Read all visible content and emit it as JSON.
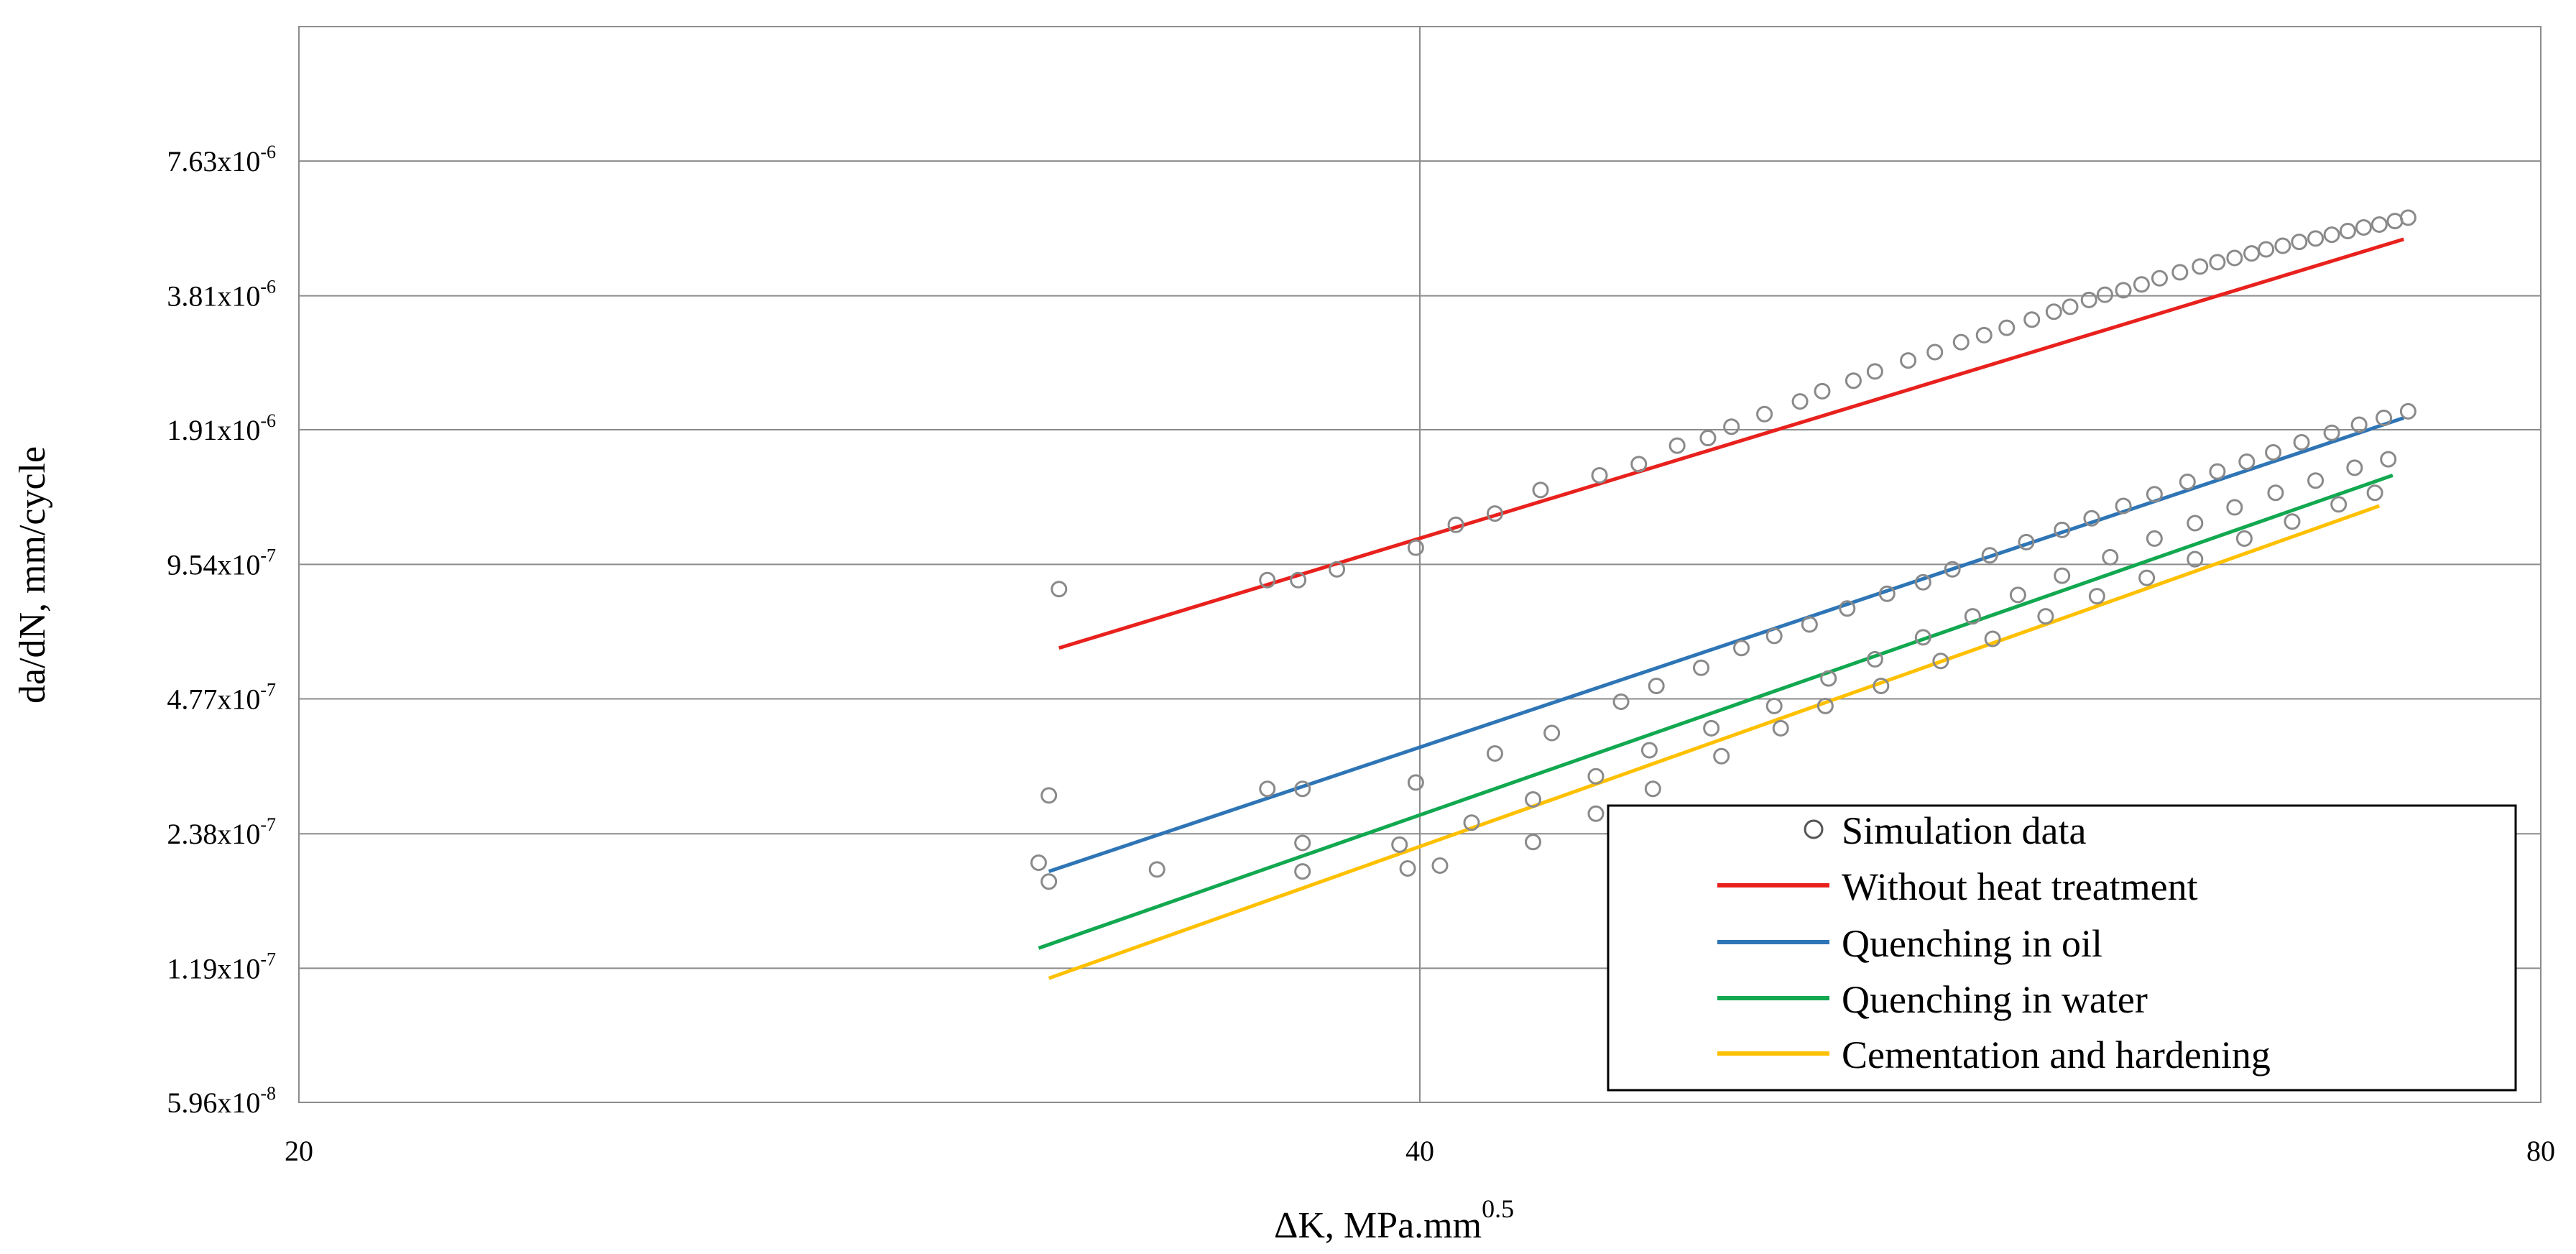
{
  "chart_data": {
    "type": "scatter",
    "xlabel": "ΔK, MPa.mm",
    "xlabel_sup": "0.5",
    "ylabel": "da/dN, mm/cycle",
    "x_scale": "log",
    "y_scale": "log",
    "xlim": [
      20,
      80
    ],
    "ylim": [
      5.96e-08,
      1.526e-05
    ],
    "x_ticks": [
      {
        "value": 20,
        "label": "20"
      },
      {
        "value": 40,
        "label": "40"
      },
      {
        "value": 80,
        "label": "80"
      }
    ],
    "y_ticks": [
      {
        "value": 5.96e-08,
        "base": "5.96x10",
        "exp": "-8"
      },
      {
        "value": 1.19e-07,
        "base": "1.19x10",
        "exp": "-7"
      },
      {
        "value": 2.38e-07,
        "base": "2.38x10",
        "exp": "-7"
      },
      {
        "value": 4.77e-07,
        "base": "4.77x10",
        "exp": "-7"
      },
      {
        "value": 9.54e-07,
        "base": "9.54x10",
        "exp": "-7"
      },
      {
        "value": 1.91e-06,
        "base": "1.91x10",
        "exp": "-6"
      },
      {
        "value": 3.81e-06,
        "base": "3.81x10",
        "exp": "-6"
      },
      {
        "value": 7.63e-06,
        "base": "7.63x10",
        "exp": "-6"
      }
    ],
    "grid": true,
    "legend_position": "bottom-right",
    "legend": [
      {
        "label": "Simulation data",
        "kind": "marker",
        "color": "#808080"
      },
      {
        "label": "Without heat treatment",
        "kind": "line",
        "color": "#e8211d"
      },
      {
        "label": "Quenching in oil",
        "kind": "line",
        "color": "#2e75b6"
      },
      {
        "label": "Quenching in water",
        "kind": "line",
        "color": "#12a850"
      },
      {
        "label": "Cementation and hardening",
        "kind": "line",
        "color": "#ffc000"
      }
    ],
    "fit_lines": [
      {
        "name": "Without heat treatment",
        "color": "#e8211d",
        "x": [
          32.0,
          73.5
        ],
        "y": [
          6.2e-07,
          5.1e-06
        ]
      },
      {
        "name": "Quenching in oil",
        "color": "#2e75b6",
        "x": [
          31.8,
          73.5
        ],
        "y": [
          1.96e-07,
          2.03e-06
        ]
      },
      {
        "name": "Quenching in water",
        "color": "#12a850",
        "x": [
          31.6,
          73.0
        ],
        "y": [
          1.32e-07,
          1.51e-06
        ]
      },
      {
        "name": "Cementation and hardening",
        "color": "#ffc000",
        "x": [
          31.8,
          72.4
        ],
        "y": [
          1.13e-07,
          1.29e-06
        ]
      }
    ],
    "series": [
      {
        "name": "Simulation data",
        "points": [
          [
            32.0,
            8.4e-07
          ],
          [
            31.8,
            2.9e-07
          ],
          [
            31.6,
            2.05e-07
          ],
          [
            31.8,
            1.86e-07
          ],
          [
            34.0,
            1.98e-07
          ],
          [
            36.4,
            8.8e-07
          ],
          [
            37.1,
            8.8e-07
          ],
          [
            38.0,
            9.3e-07
          ],
          [
            39.9,
            1.04e-06
          ],
          [
            40.9,
            1.17e-06
          ],
          [
            41.9,
            1.24e-06
          ],
          [
            43.1,
            1.4e-06
          ],
          [
            44.7,
            1.51e-06
          ],
          [
            45.8,
            1.6e-06
          ],
          [
            46.9,
            1.76e-06
          ],
          [
            47.8,
            1.83e-06
          ],
          [
            48.5,
            1.94e-06
          ],
          [
            49.5,
            2.07e-06
          ],
          [
            50.6,
            2.21e-06
          ],
          [
            51.3,
            2.33e-06
          ],
          [
            52.3,
            2.46e-06
          ],
          [
            53.0,
            2.58e-06
          ],
          [
            54.1,
            2.73e-06
          ],
          [
            55.0,
            2.85e-06
          ],
          [
            55.9,
            3e-06
          ],
          [
            56.7,
            3.11e-06
          ],
          [
            57.5,
            3.23e-06
          ],
          [
            58.4,
            3.37e-06
          ],
          [
            59.2,
            3.51e-06
          ],
          [
            59.8,
            3.6e-06
          ],
          [
            60.5,
            3.73e-06
          ],
          [
            61.1,
            3.83e-06
          ],
          [
            61.8,
            3.92e-06
          ],
          [
            62.5,
            4.04e-06
          ],
          [
            63.2,
            4.17e-06
          ],
          [
            64.0,
            4.3e-06
          ],
          [
            64.8,
            4.43e-06
          ],
          [
            65.5,
            4.53e-06
          ],
          [
            66.2,
            4.63e-06
          ],
          [
            66.9,
            4.74e-06
          ],
          [
            67.5,
            4.84e-06
          ],
          [
            68.2,
            4.93e-06
          ],
          [
            68.9,
            5.03e-06
          ],
          [
            69.6,
            5.12e-06
          ],
          [
            70.3,
            5.22e-06
          ],
          [
            71.0,
            5.32e-06
          ],
          [
            71.7,
            5.42e-06
          ],
          [
            72.4,
            5.5e-06
          ],
          [
            73.1,
            5.6e-06
          ],
          [
            73.7,
            5.7e-06
          ],
          [
            36.4,
            3e-07
          ],
          [
            37.2,
            3e-07
          ],
          [
            39.9,
            3.1e-07
          ],
          [
            41.9,
            3.6e-07
          ],
          [
            43.4,
            4e-07
          ],
          [
            45.3,
            4.7e-07
          ],
          [
            46.3,
            5.1e-07
          ],
          [
            47.6,
            5.6e-07
          ],
          [
            48.8,
            6.2e-07
          ],
          [
            49.8,
            6.6e-07
          ],
          [
            50.9,
            7e-07
          ],
          [
            52.1,
            7.6e-07
          ],
          [
            53.4,
            8.2e-07
          ],
          [
            54.6,
            8.7e-07
          ],
          [
            55.6,
            9.3e-07
          ],
          [
            56.9,
            1e-06
          ],
          [
            58.2,
            1.07e-06
          ],
          [
            59.5,
            1.14e-06
          ],
          [
            60.6,
            1.21e-06
          ],
          [
            61.8,
            1.29e-06
          ],
          [
            63.0,
            1.37e-06
          ],
          [
            64.3,
            1.46e-06
          ],
          [
            65.5,
            1.54e-06
          ],
          [
            66.7,
            1.62e-06
          ],
          [
            67.8,
            1.7e-06
          ],
          [
            69.0,
            1.79e-06
          ],
          [
            70.3,
            1.88e-06
          ],
          [
            71.5,
            1.96e-06
          ],
          [
            72.6,
            2.03e-06
          ],
          [
            73.7,
            2.1e-06
          ],
          [
            37.2,
            2.27e-07
          ],
          [
            39.5,
            2.25e-07
          ],
          [
            41.3,
            2.52e-07
          ],
          [
            42.9,
            2.84e-07
          ],
          [
            44.6,
            3.2e-07
          ],
          [
            46.1,
            3.66e-07
          ],
          [
            47.9,
            4.1e-07
          ],
          [
            49.8,
            4.6e-07
          ],
          [
            51.5,
            5.3e-07
          ],
          [
            53.0,
            5.85e-07
          ],
          [
            54.6,
            6.55e-07
          ],
          [
            56.3,
            7.3e-07
          ],
          [
            57.9,
            8.15e-07
          ],
          [
            59.5,
            9e-07
          ],
          [
            61.3,
            9.9e-07
          ],
          [
            63.0,
            1.09e-06
          ],
          [
            64.6,
            1.18e-06
          ],
          [
            66.2,
            1.28e-06
          ],
          [
            67.9,
            1.38e-06
          ],
          [
            69.6,
            1.47e-06
          ],
          [
            71.3,
            1.57e-06
          ],
          [
            72.8,
            1.64e-06
          ],
          [
            37.2,
            1.96e-07
          ],
          [
            39.7,
            1.99e-07
          ],
          [
            40.5,
            2.02e-07
          ],
          [
            42.9,
            2.28e-07
          ],
          [
            44.6,
            2.64e-07
          ],
          [
            46.2,
            3e-07
          ],
          [
            48.2,
            3.55e-07
          ],
          [
            50.0,
            4.1e-07
          ],
          [
            51.4,
            4.6e-07
          ],
          [
            53.2,
            5.1e-07
          ],
          [
            55.2,
            5.8e-07
          ],
          [
            57.0,
            6.5e-07
          ],
          [
            58.9,
            7.3e-07
          ],
          [
            60.8,
            8.1e-07
          ],
          [
            62.7,
            8.9e-07
          ],
          [
            64.6,
            9.8e-07
          ],
          [
            66.6,
            1.09e-06
          ],
          [
            68.6,
            1.19e-06
          ],
          [
            70.6,
            1.3e-06
          ],
          [
            72.2,
            1.38e-06
          ]
        ]
      }
    ]
  }
}
